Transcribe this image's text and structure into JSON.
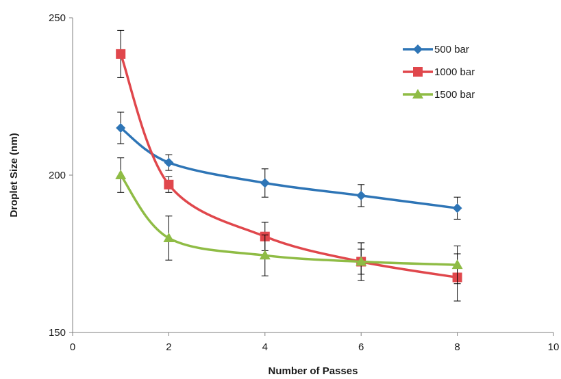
{
  "chart_data": {
    "type": "line",
    "xlabel": "Number of Passes",
    "ylabel": "Droplet Size (nm)",
    "xlim": [
      0,
      10
    ],
    "ylim": [
      150,
      250
    ],
    "x_ticks": [
      0,
      2,
      4,
      6,
      8,
      10
    ],
    "y_ticks": [
      150,
      200,
      250
    ],
    "grid": false,
    "smooth": true,
    "legend": "top-right",
    "series": [
      {
        "name": "500 bar",
        "color": "#2e75b6",
        "marker": "diamond",
        "x": [
          1,
          2,
          4,
          6,
          8
        ],
        "y": [
          215,
          204,
          197.5,
          193.5,
          189.5
        ],
        "err": [
          5,
          2.5,
          4.5,
          3.5,
          3.5
        ]
      },
      {
        "name": "1000 bar",
        "color": "#e0474c",
        "marker": "square",
        "x": [
          1,
          2,
          4,
          6,
          8
        ],
        "y": [
          238.5,
          197,
          180.5,
          172.5,
          167.5
        ],
        "err": [
          7.5,
          2.5,
          4.5,
          6,
          7.5
        ]
      },
      {
        "name": "1500 bar",
        "color": "#8fbc45",
        "marker": "triangle",
        "x": [
          1,
          2,
          4,
          6,
          8
        ],
        "y": [
          200,
          180,
          174.5,
          172.5,
          171.5
        ],
        "err": [
          5.5,
          7,
          6.5,
          4,
          6
        ]
      }
    ]
  }
}
